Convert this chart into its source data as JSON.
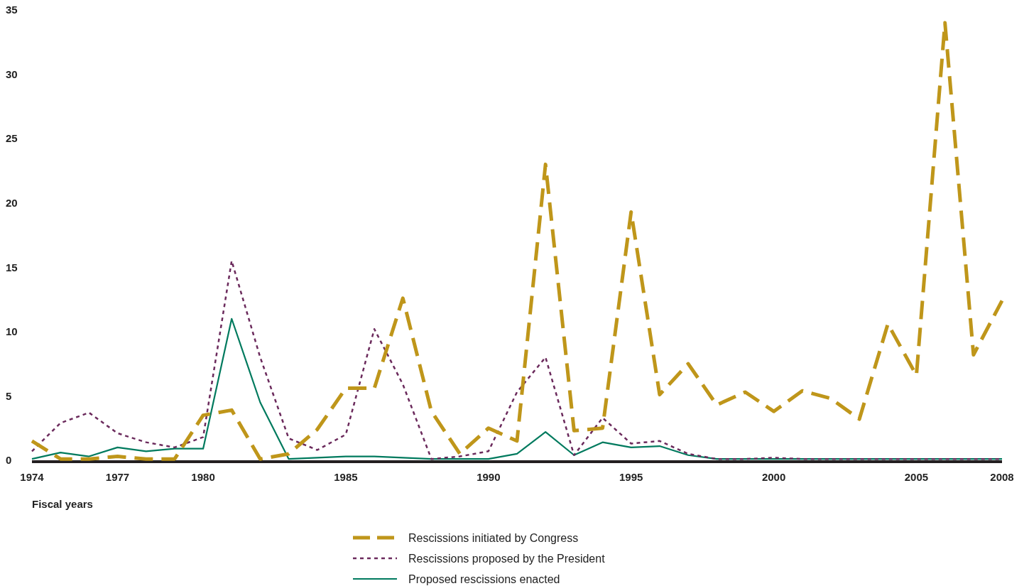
{
  "chart_data": {
    "type": "line",
    "xlabel": "Fiscal years",
    "x": [
      1974,
      1975,
      1976,
      1977,
      1978,
      1979,
      1980,
      1981,
      1982,
      1983,
      1984,
      1985,
      1986,
      1987,
      1988,
      1989,
      1990,
      1991,
      1992,
      1993,
      1994,
      1995,
      1996,
      1997,
      1998,
      1999,
      2000,
      2001,
      2002,
      2003,
      2004,
      2005,
      2006,
      2007,
      2008
    ],
    "series": [
      {
        "name": "Rescissions initiated by Congress",
        "color": "#bf961a",
        "line_style": "dashed",
        "values": [
          1.5,
          0.1,
          0.1,
          0.3,
          0.1,
          0.1,
          3.5,
          3.9,
          0.1,
          0.5,
          2.4,
          5.6,
          5.6,
          12.6,
          3.8,
          0.5,
          2.5,
          1.5,
          23.0,
          2.3,
          2.5,
          19.3,
          5.1,
          7.5,
          4.3,
          5.3,
          3.8,
          5.4,
          4.8,
          3.2,
          10.6,
          6.6,
          34.0,
          8.2,
          12.4
        ]
      },
      {
        "name": "Rescissions proposed by the President",
        "color": "#6b2a5c",
        "line_style": "dotted",
        "values": [
          0.7,
          2.9,
          3.7,
          2.1,
          1.4,
          1.0,
          1.8,
          15.5,
          8.0,
          1.7,
          0.8,
          2.0,
          10.2,
          5.9,
          0.1,
          0.3,
          0.7,
          5.3,
          8.0,
          0.4,
          3.3,
          1.3,
          1.5,
          0.5,
          0.1,
          0.1,
          0.2,
          0.1,
          0.1,
          0.1,
          0.1,
          0.1,
          0.1,
          0.1,
          0.1
        ]
      },
      {
        "name": "Proposed rescissions enacted",
        "color": "#007a5e",
        "line_style": "solid",
        "values": [
          0.1,
          0.6,
          0.3,
          1.0,
          0.7,
          0.9,
          0.9,
          11.0,
          4.5,
          0.1,
          0.2,
          0.3,
          0.3,
          0.2,
          0.1,
          0.1,
          0.1,
          0.5,
          2.2,
          0.4,
          1.4,
          1.0,
          1.1,
          0.4,
          0.1,
          0.1,
          0.1,
          0.1,
          0.1,
          0.1,
          0.1,
          0.1,
          0.1,
          0.1,
          0.1
        ]
      }
    ],
    "xlim": [
      1974,
      2008
    ],
    "xticks": [
      1974,
      1977,
      1980,
      1985,
      1990,
      1995,
      2000,
      2005,
      2008
    ],
    "ylim": [
      0,
      35
    ],
    "yticks": [
      0,
      5,
      10,
      15,
      20,
      25,
      30,
      35
    ],
    "grid": false,
    "legend": "bottom"
  }
}
